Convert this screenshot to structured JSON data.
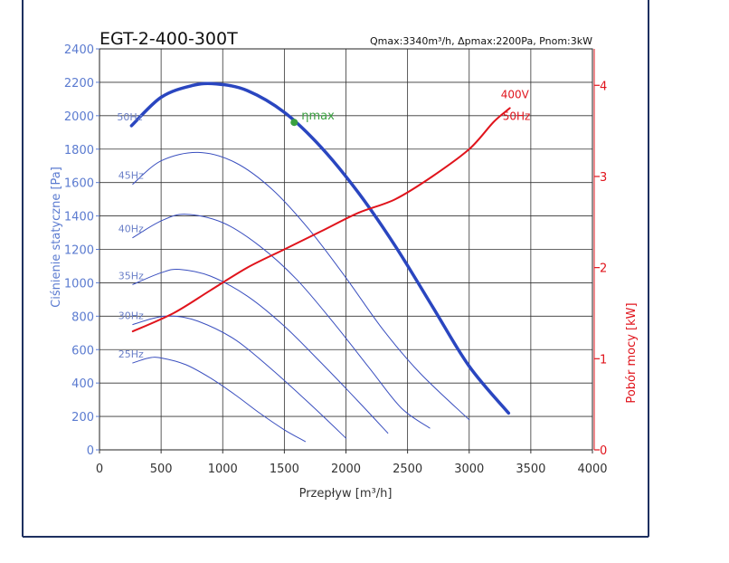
{
  "chart_data": {
    "type": "line",
    "title": "EGT-2-400-300T",
    "subtitle": "Qmax:3340m³/h, Δpmax:2200Pa, Pnom:3kW",
    "xlabel": "Przepływ [m³/h]",
    "ylabel": "Ciśnienie statyczne [Pa]",
    "y2label": "Pobór mocy [kW]",
    "xlim": [
      0,
      4000
    ],
    "ylim": [
      0,
      2400
    ],
    "y2lim": [
      0,
      4.4
    ],
    "x_ticks": [
      0,
      500,
      1000,
      1500,
      2000,
      2500,
      3000,
      3500,
      4000
    ],
    "y_ticks": [
      0,
      200,
      400,
      600,
      800,
      1000,
      1200,
      1400,
      1600,
      1800,
      2000,
      2200,
      2400
    ],
    "y2_ticks": [
      0,
      1,
      2,
      3,
      4
    ],
    "grid": true,
    "colors": {
      "frequency_curves": "#3a4fbf",
      "pressure_50hz": "#2a46c0",
      "power": "#e0141c",
      "eta": "#3aa040",
      "axis_left": "#5b7bd0",
      "axis_right": "#e0141c"
    },
    "series": [
      {
        "name": "50Hz",
        "axis": "pressure",
        "highlight": true,
        "x": [
          260,
          500,
          750,
          950,
          1200,
          1500,
          1800,
          2100,
          2400,
          2700,
          3000,
          3320
        ],
        "y": [
          1940,
          2110,
          2180,
          2190,
          2150,
          2020,
          1810,
          1540,
          1220,
          860,
          500,
          220
        ]
      },
      {
        "name": "45Hz",
        "axis": "pressure",
        "x": [
          270,
          500,
          800,
          1100,
          1400,
          1700,
          2000,
          2300,
          2600,
          3000
        ],
        "y": [
          1590,
          1730,
          1780,
          1720,
          1560,
          1320,
          1030,
          720,
          460,
          180
        ]
      },
      {
        "name": "40Hz",
        "axis": "pressure",
        "x": [
          270,
          500,
          700,
          1000,
          1300,
          1600,
          1900,
          2200,
          2450,
          2680
        ],
        "y": [
          1270,
          1370,
          1410,
          1360,
          1220,
          1020,
          760,
          480,
          250,
          130
        ]
      },
      {
        "name": "35Hz",
        "axis": "pressure",
        "x": [
          270,
          500,
          650,
          900,
          1200,
          1500,
          1800,
          2100,
          2340
        ],
        "y": [
          990,
          1060,
          1080,
          1040,
          920,
          740,
          520,
          290,
          100
        ]
      },
      {
        "name": "30Hz",
        "axis": "pressure",
        "x": [
          270,
          450,
          600,
          800,
          1100,
          1400,
          1700,
          2000
        ],
        "y": [
          750,
          790,
          800,
          770,
          660,
          480,
          280,
          70
        ]
      },
      {
        "name": "25Hz",
        "axis": "pressure",
        "x": [
          270,
          400,
          500,
          700,
          900,
          1100,
          1300,
          1500,
          1670
        ],
        "y": [
          520,
          550,
          550,
          510,
          430,
          330,
          220,
          120,
          50
        ]
      },
      {
        "name": "400V 50Hz",
        "axis": "power",
        "x": [
          270,
          600,
          900,
          1200,
          1500,
          1800,
          2100,
          2400,
          2700,
          3000,
          3200,
          3330
        ],
        "y": [
          1.3,
          1.5,
          1.75,
          2.0,
          2.2,
          2.4,
          2.6,
          2.75,
          3.0,
          3.3,
          3.6,
          3.75
        ]
      }
    ],
    "annotations": [
      {
        "label": "ηmax",
        "x": 1580,
        "y": 1960
      }
    ],
    "series_label_text": {
      "400V": "400V",
      "50Hz": "50Hz"
    }
  }
}
